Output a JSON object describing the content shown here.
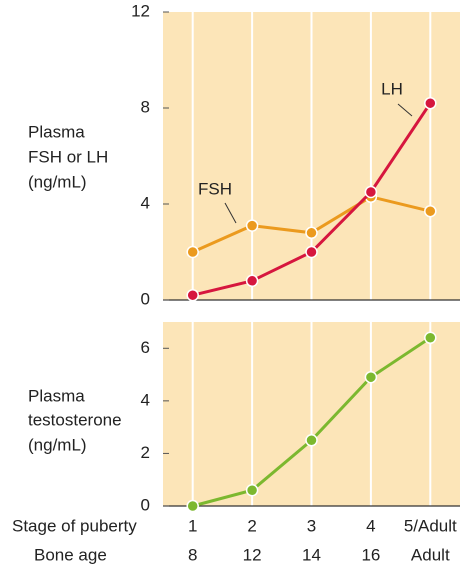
{
  "chart_data": [
    {
      "type": "line",
      "ylabel": [
        "Plasma",
        "FSH or LH",
        "(ng/mL)"
      ],
      "series": [
        {
          "name": "FSH",
          "color": "#eb9a1e",
          "values": [
            2.0,
            3.1,
            2.8,
            4.3,
            3.7
          ]
        },
        {
          "name": "LH",
          "color": "#d6163e",
          "values": [
            0.2,
            0.8,
            2.0,
            4.5,
            8.2
          ]
        }
      ],
      "ylim": [
        0,
        12
      ],
      "yticks": [
        0,
        4,
        8,
        12
      ],
      "grid": "x",
      "background": "#fce5b8"
    },
    {
      "type": "line",
      "ylabel": [
        "Plasma",
        "testosterone",
        "(ng/mL)"
      ],
      "xlabel": "Stage of puberty",
      "categories": [
        "1",
        "2",
        "3",
        "4",
        "5/Adult"
      ],
      "secondary_xlabel": "Bone age",
      "secondary_categories": [
        "8",
        "12",
        "14",
        "16",
        "Adult"
      ],
      "series": [
        {
          "name": null,
          "color": "#7cb82f",
          "values": [
            0,
            0.6,
            2.5,
            4.9,
            6.4
          ]
        }
      ],
      "ylim": [
        0,
        7
      ],
      "yticks": [
        0,
        2,
        4,
        6
      ],
      "grid": "x",
      "background": "#fce5b8"
    }
  ]
}
